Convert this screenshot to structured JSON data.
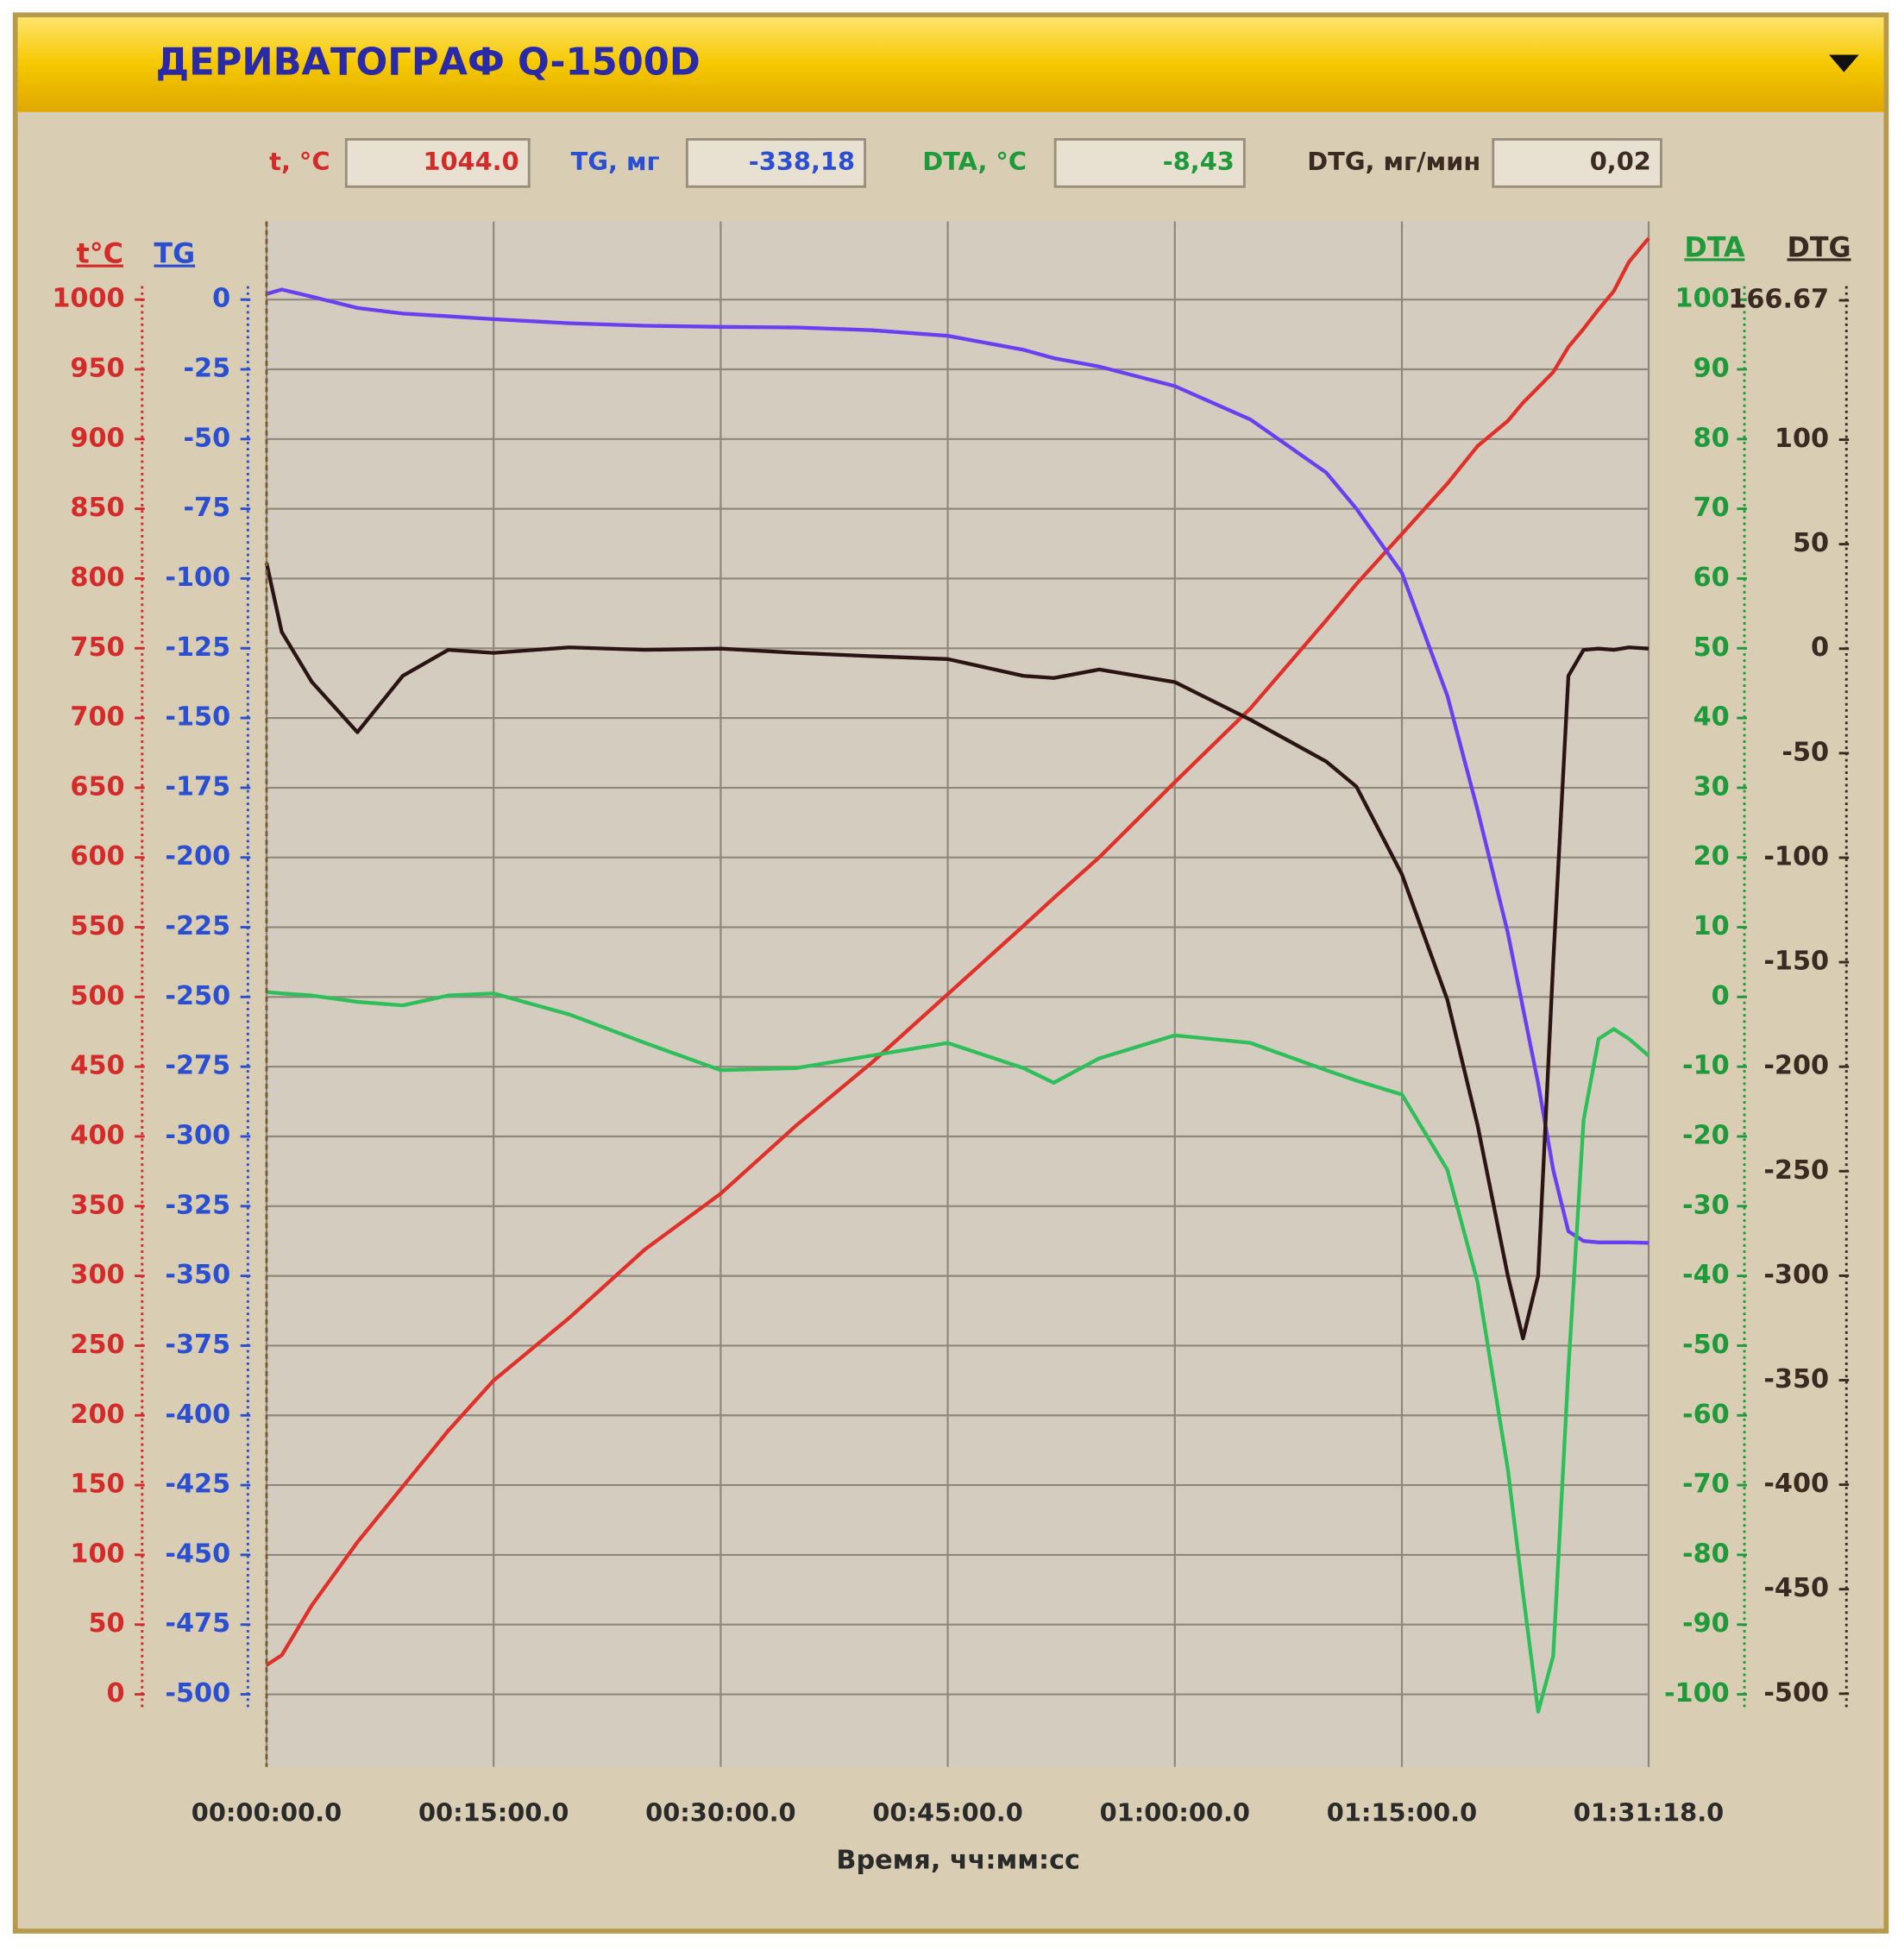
{
  "chart_data": {
    "type": "line",
    "title": "ДЕРИВАТОГРАФ Q-1500D",
    "readouts": [
      {
        "label": "t, °C",
        "value": "1044.0"
      },
      {
        "label": "TG, мг",
        "value": "-338,18"
      },
      {
        "label": "DTA, °C",
        "value": "-8,43"
      },
      {
        "label": "DTG, мг/мин",
        "value": "0,02"
      }
    ],
    "x_label": "Время, чч:мм:сс",
    "x": [
      0,
      60,
      180,
      360,
      540,
      720,
      900,
      1200,
      1500,
      1800,
      2100,
      2400,
      2700,
      3000,
      3120,
      3300,
      3600,
      3900,
      4200,
      4320,
      4500,
      4680,
      4800,
      4920,
      4980,
      5040,
      5100,
      5160,
      5220,
      5280,
      5340,
      5400,
      5478
    ],
    "xlim": [
      0,
      5478
    ],
    "xticks": [
      {
        "value": 0,
        "label": "00:00:00.0"
      },
      {
        "value": 900,
        "label": "00:15:00.0"
      },
      {
        "value": 1800,
        "label": "00:30:00.0"
      },
      {
        "value": 2700,
        "label": "00:45:00.0"
      },
      {
        "value": 3600,
        "label": "01:00:00.0"
      },
      {
        "value": 4500,
        "label": "01:15:00.0"
      },
      {
        "value": 5478,
        "label": "01:31:18.0"
      }
    ],
    "grid": true,
    "axes": [
      {
        "name": "t°C",
        "color": "#d42a2a",
        "lim": [
          -52,
          1056
        ],
        "ticks": [
          0,
          50,
          100,
          150,
          200,
          250,
          300,
          350,
          400,
          450,
          500,
          550,
          600,
          650,
          700,
          750,
          800,
          850,
          900,
          950,
          1000
        ]
      },
      {
        "name": "TG",
        "color": "#2a4fd0",
        "lim": [
          -526,
          28
        ],
        "ticks": [
          0,
          -25,
          -50,
          -75,
          -100,
          -125,
          -150,
          -175,
          -200,
          -225,
          -250,
          -275,
          -300,
          -325,
          -350,
          -375,
          -400,
          -425,
          -450,
          -475,
          -500
        ]
      },
      {
        "name": "DTA",
        "color": "#1e9a3a",
        "lim": [
          -110.4,
          111.2
        ],
        "ticks": [
          100,
          90,
          80,
          70,
          60,
          50,
          40,
          30,
          20,
          10,
          0,
          -10,
          -20,
          -30,
          -40,
          -50,
          -60,
          -70,
          -80,
          -90,
          -100
        ]
      },
      {
        "name": "DTG",
        "color": "#3a2a22",
        "lim": [
          -535,
          204.4
        ],
        "ticks": [
          166.67,
          100,
          50,
          0,
          -50,
          -100,
          -150,
          -200,
          -250,
          -300,
          -350,
          -400,
          -450,
          -500
        ]
      }
    ],
    "series": [
      {
        "axis": 0,
        "color": "#e0302a",
        "values": [
          21,
          28,
          64,
          109,
          149,
          189,
          225,
          270,
          319,
          359,
          408,
          453,
          502,
          551,
          571,
          600,
          654,
          707,
          770,
          796,
          832,
          868,
          895,
          913,
          926,
          937,
          948,
          966,
          979,
          993,
          1006,
          1027,
          1044
        ]
      },
      {
        "axis": 1,
        "color": "#6a3ff0",
        "values": [
          2,
          3.6,
          1,
          -3,
          -5,
          -6,
          -7,
          -8.5,
          -9.4,
          -9.8,
          -10,
          -11,
          -13,
          -18,
          -21,
          -24,
          -31,
          -43,
          -62,
          -75,
          -98,
          -142,
          -183,
          -227,
          -254,
          -281,
          -312,
          -334,
          -337.5,
          -338,
          -338,
          -338,
          -338.18
        ]
      },
      {
        "axis": 2,
        "color": "#2fbf5a",
        "values": [
          0.7,
          0.5,
          0.2,
          -0.7,
          -1.2,
          0.2,
          0.5,
          -2.5,
          -6.6,
          -10.5,
          -10.2,
          -8.4,
          -6.6,
          -10.2,
          -12.3,
          -8.8,
          -5.5,
          -6.6,
          -10.5,
          -12,
          -14,
          -24.8,
          -40.9,
          -67.7,
          -85.5,
          -102.5,
          -94.5,
          -53.4,
          -17.7,
          -6,
          -4.6,
          -6,
          -8.43
        ]
      },
      {
        "axis": 3,
        "color": "#2a1414",
        "values": [
          41,
          8,
          -16,
          -40,
          -13,
          -0.6,
          -2,
          0.6,
          -0.6,
          0,
          -2,
          -3.6,
          -5,
          -13,
          -14,
          -10,
          -16,
          -34,
          -54,
          -66,
          -108,
          -168,
          -228,
          -300,
          -330,
          -300,
          -150,
          -13,
          -0.6,
          0,
          -0.6,
          0.6,
          0.02
        ]
      }
    ]
  }
}
